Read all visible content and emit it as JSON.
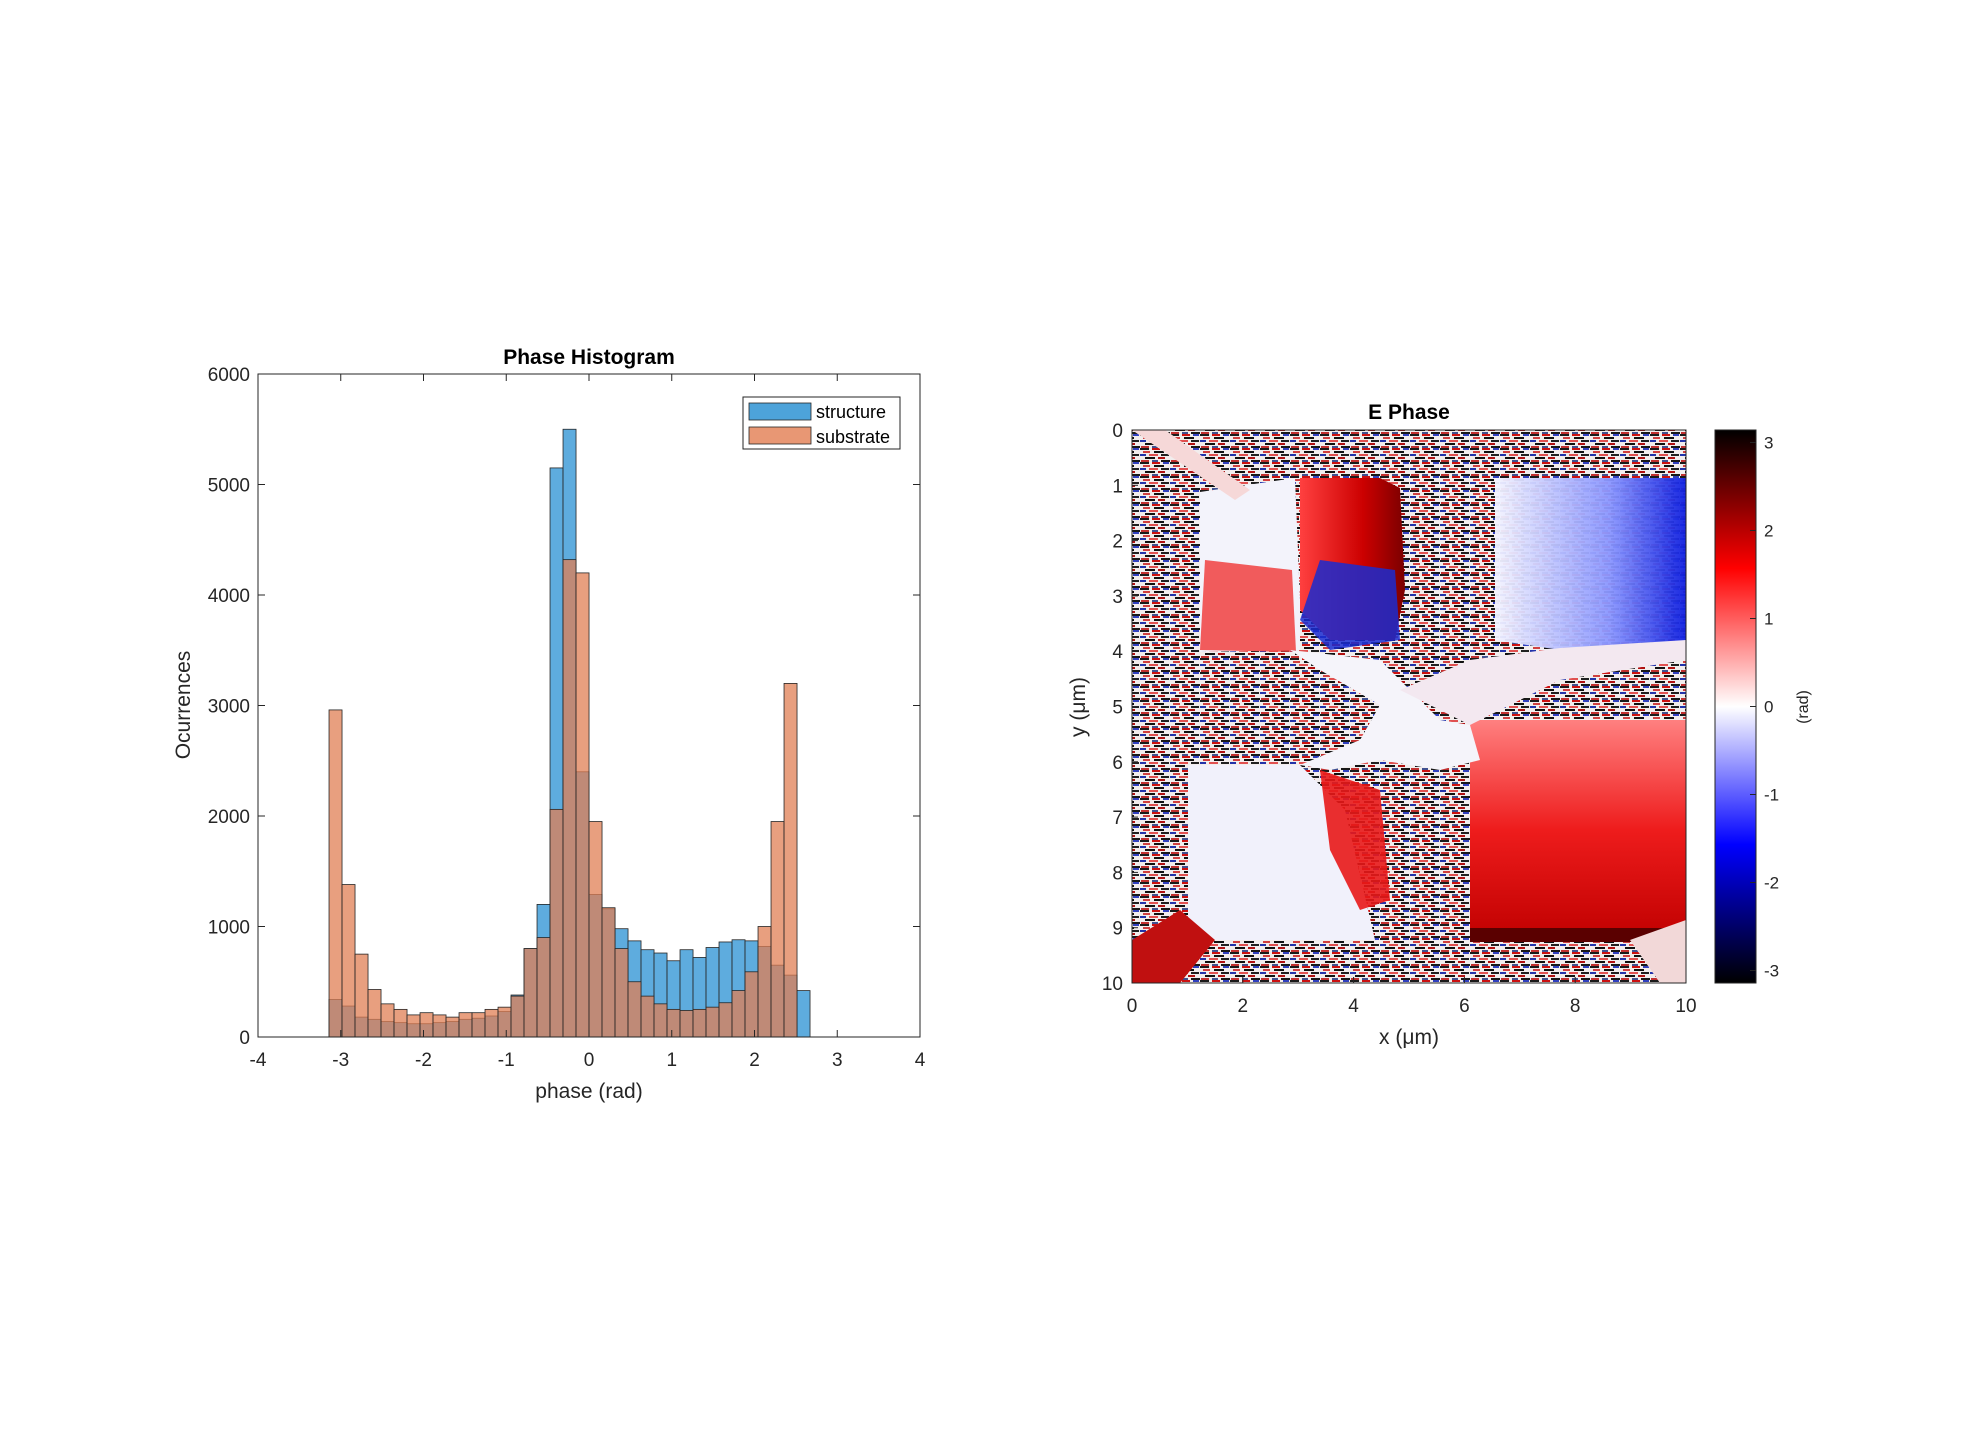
{
  "chart_data": [
    {
      "type": "bar",
      "title": "Phase Histogram",
      "xlabel": "phase (rad)",
      "ylabel": "Ocurrences",
      "xlim": [
        -4,
        4
      ],
      "ylim": [
        0,
        6000
      ],
      "xticks": [
        -4,
        -3,
        -2,
        -1,
        0,
        1,
        2,
        3,
        4
      ],
      "yticks": [
        0,
        1000,
        2000,
        3000,
        4000,
        5000,
        6000
      ],
      "bin_edges_start": -3.1416,
      "bin_width": 0.1571,
      "series": [
        {
          "name": "structure",
          "color": "#0072BD",
          "values": [
            340,
            280,
            180,
            160,
            140,
            130,
            120,
            120,
            130,
            140,
            160,
            170,
            190,
            230,
            380,
            800,
            1200,
            5150,
            5500,
            2400,
            1290,
            1160,
            980,
            870,
            790,
            760,
            690,
            790,
            720,
            810,
            860,
            880,
            870,
            820,
            650,
            560,
            420
          ]
        },
        {
          "name": "substrate",
          "color": "#D95319",
          "values": [
            2960,
            1380,
            750,
            430,
            300,
            250,
            200,
            220,
            200,
            180,
            220,
            220,
            250,
            270,
            370,
            800,
            900,
            2060,
            4320,
            4200,
            1950,
            1170,
            800,
            500,
            370,
            300,
            250,
            240,
            250,
            270,
            310,
            420,
            590,
            1000,
            1950,
            3200,
            0
          ]
        }
      ],
      "legend_position": "top-right"
    },
    {
      "type": "heatmap",
      "title": "E Phase",
      "xlabel": "x (μm)",
      "ylabel": "y (μm)",
      "xlim": [
        0,
        10
      ],
      "ylim": [
        0,
        10
      ],
      "xticks": [
        0,
        2,
        4,
        6,
        8,
        10
      ],
      "yticks": [
        0,
        1,
        2,
        3,
        4,
        5,
        6,
        7,
        8,
        9,
        10
      ],
      "colorbar": {
        "label": "(rad)",
        "range": [
          -3.1416,
          3.1416
        ],
        "ticks": [
          -3,
          -2,
          -1,
          0,
          1,
          2,
          3
        ],
        "colormap": [
          "#000000",
          "#0000ff",
          "#ffffff",
          "#ff0000",
          "#000000"
        ]
      }
    }
  ]
}
